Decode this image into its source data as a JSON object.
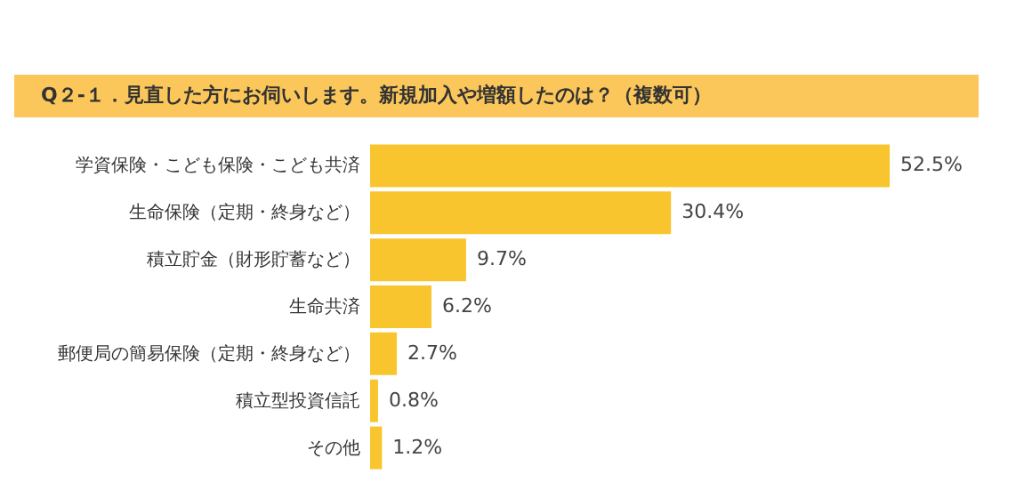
{
  "chart_data": {
    "type": "bar",
    "orientation": "horizontal",
    "title": "Q２-１．見直した方にお伺いします。新規加入や増額したのは？（複数可）",
    "categories": [
      "学資保険・こども保険・こども共済",
      "生命保険（定期・終身など）",
      "積立貯金（財形貯蓄など）",
      "生命共済",
      "郵便局の簡易保険（定期・終身など）",
      "積立型投資信託",
      "その他"
    ],
    "values": [
      52.5,
      30.4,
      9.7,
      6.2,
      2.7,
      0.8,
      1.2
    ],
    "value_labels": [
      "52.5%",
      "30.4%",
      "9.7%",
      "6.2%",
      "2.7%",
      "0.8%",
      "1.2%"
    ],
    "color": "#f9c52e",
    "grid": false
  }
}
